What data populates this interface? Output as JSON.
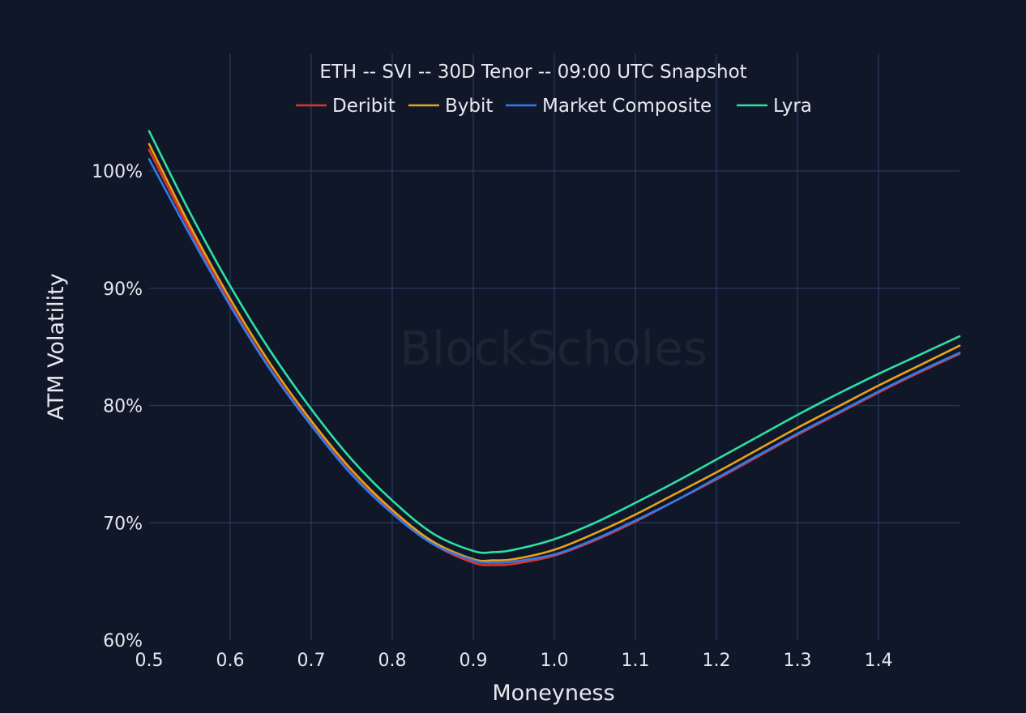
{
  "chart_data": {
    "type": "line",
    "title": "ETH -- SVI -- 30D Tenor -- 09:00 UTC Snapshot",
    "xlabel": "Moneyness",
    "ylabel": "ATM Volatility",
    "xlim": [
      0.5,
      1.5
    ],
    "ylim": [
      60,
      105
    ],
    "x_ticks": [
      "0.5",
      "0.6",
      "0.7",
      "0.8",
      "0.9",
      "1.0",
      "1.1",
      "1.2",
      "1.3",
      "1.4"
    ],
    "y_ticks": [
      "60%",
      "70%",
      "80%",
      "90%",
      "100%"
    ],
    "grid": true,
    "legend_position": "top-center",
    "watermark": "BlockScholes",
    "x": [
      0.5,
      0.55,
      0.6,
      0.65,
      0.7,
      0.75,
      0.8,
      0.85,
      0.9,
      0.925,
      0.95,
      1.0,
      1.05,
      1.1,
      1.15,
      1.2,
      1.25,
      1.3,
      1.35,
      1.4,
      1.45,
      1.5
    ],
    "series": [
      {
        "name": "Deribit",
        "color": "#e0342a",
        "values": [
          101.8,
          95.0,
          88.7,
          83.1,
          78.4,
          74.2,
          70.9,
          68.2,
          66.6,
          66.4,
          66.5,
          67.2,
          68.5,
          70.1,
          71.9,
          73.7,
          75.6,
          77.5,
          79.3,
          81.1,
          82.8,
          84.4
        ]
      },
      {
        "name": "Bybit",
        "color": "#e8a317",
        "values": [
          102.3,
          95.4,
          89.1,
          83.5,
          78.7,
          74.5,
          71.1,
          68.4,
          66.9,
          66.8,
          66.9,
          67.7,
          69.1,
          70.7,
          72.5,
          74.3,
          76.2,
          78.1,
          79.9,
          81.7,
          83.4,
          85.1
        ]
      },
      {
        "name": "Market Composite",
        "color": "#2f7bef",
        "values": [
          101.0,
          94.6,
          88.5,
          83.0,
          78.3,
          74.1,
          70.8,
          68.2,
          66.8,
          66.6,
          66.7,
          67.3,
          68.6,
          70.2,
          71.9,
          73.8,
          75.7,
          77.6,
          79.4,
          81.2,
          82.9,
          84.5
        ]
      },
      {
        "name": "Lyra",
        "color": "#2ee0a2",
        "values": [
          103.4,
          96.5,
          90.2,
          84.6,
          79.7,
          75.4,
          71.9,
          69.1,
          67.6,
          67.5,
          67.7,
          68.6,
          70.0,
          71.7,
          73.5,
          75.4,
          77.3,
          79.2,
          81.0,
          82.7,
          84.3,
          85.9
        ]
      }
    ]
  }
}
